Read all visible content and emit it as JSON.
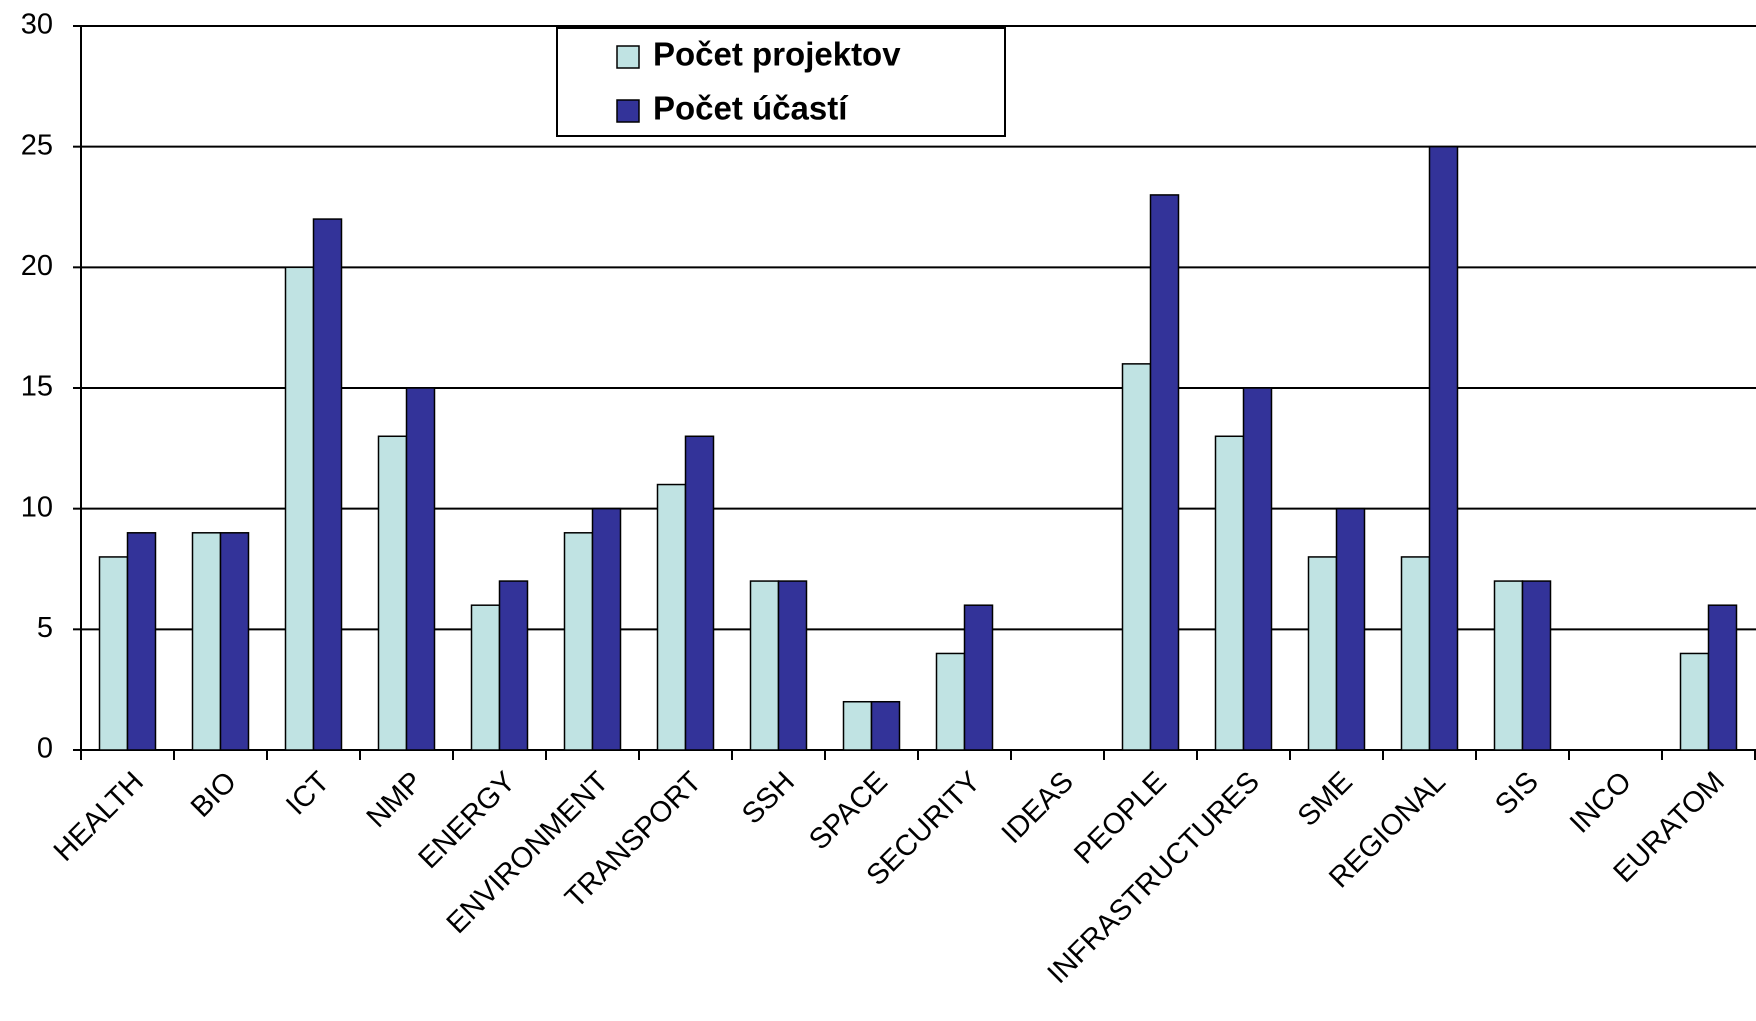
{
  "chart_data": {
    "type": "bar",
    "categories": [
      "HEALTH",
      "BIO",
      "ICT",
      "NMP",
      "ENERGY",
      "ENVIRONMENT",
      "TRANSPORT",
      "SSH",
      "SPACE",
      "SECURITY",
      "IDEAS",
      "PEOPLE",
      "INFRASTRUCTURES",
      "SME",
      "REGIONAL",
      "SIS",
      "INCO",
      "EURATOM"
    ],
    "series": [
      {
        "name": "Počet projektov",
        "color": "#c0e3e3",
        "values": [
          8,
          9,
          20,
          13,
          6,
          9,
          11,
          7,
          2,
          4,
          0,
          16,
          13,
          8,
          8,
          7,
          0,
          4
        ]
      },
      {
        "name": "Počet účastí",
        "color": "#333399",
        "values": [
          9,
          9,
          22,
          15,
          7,
          10,
          13,
          7,
          2,
          6,
          0,
          23,
          15,
          10,
          25,
          7,
          0,
          6
        ]
      }
    ],
    "ylim": [
      0,
      30
    ],
    "yticks": [
      0,
      5,
      10,
      15,
      20,
      25,
      30
    ],
    "grid": true,
    "legend": "top"
  }
}
